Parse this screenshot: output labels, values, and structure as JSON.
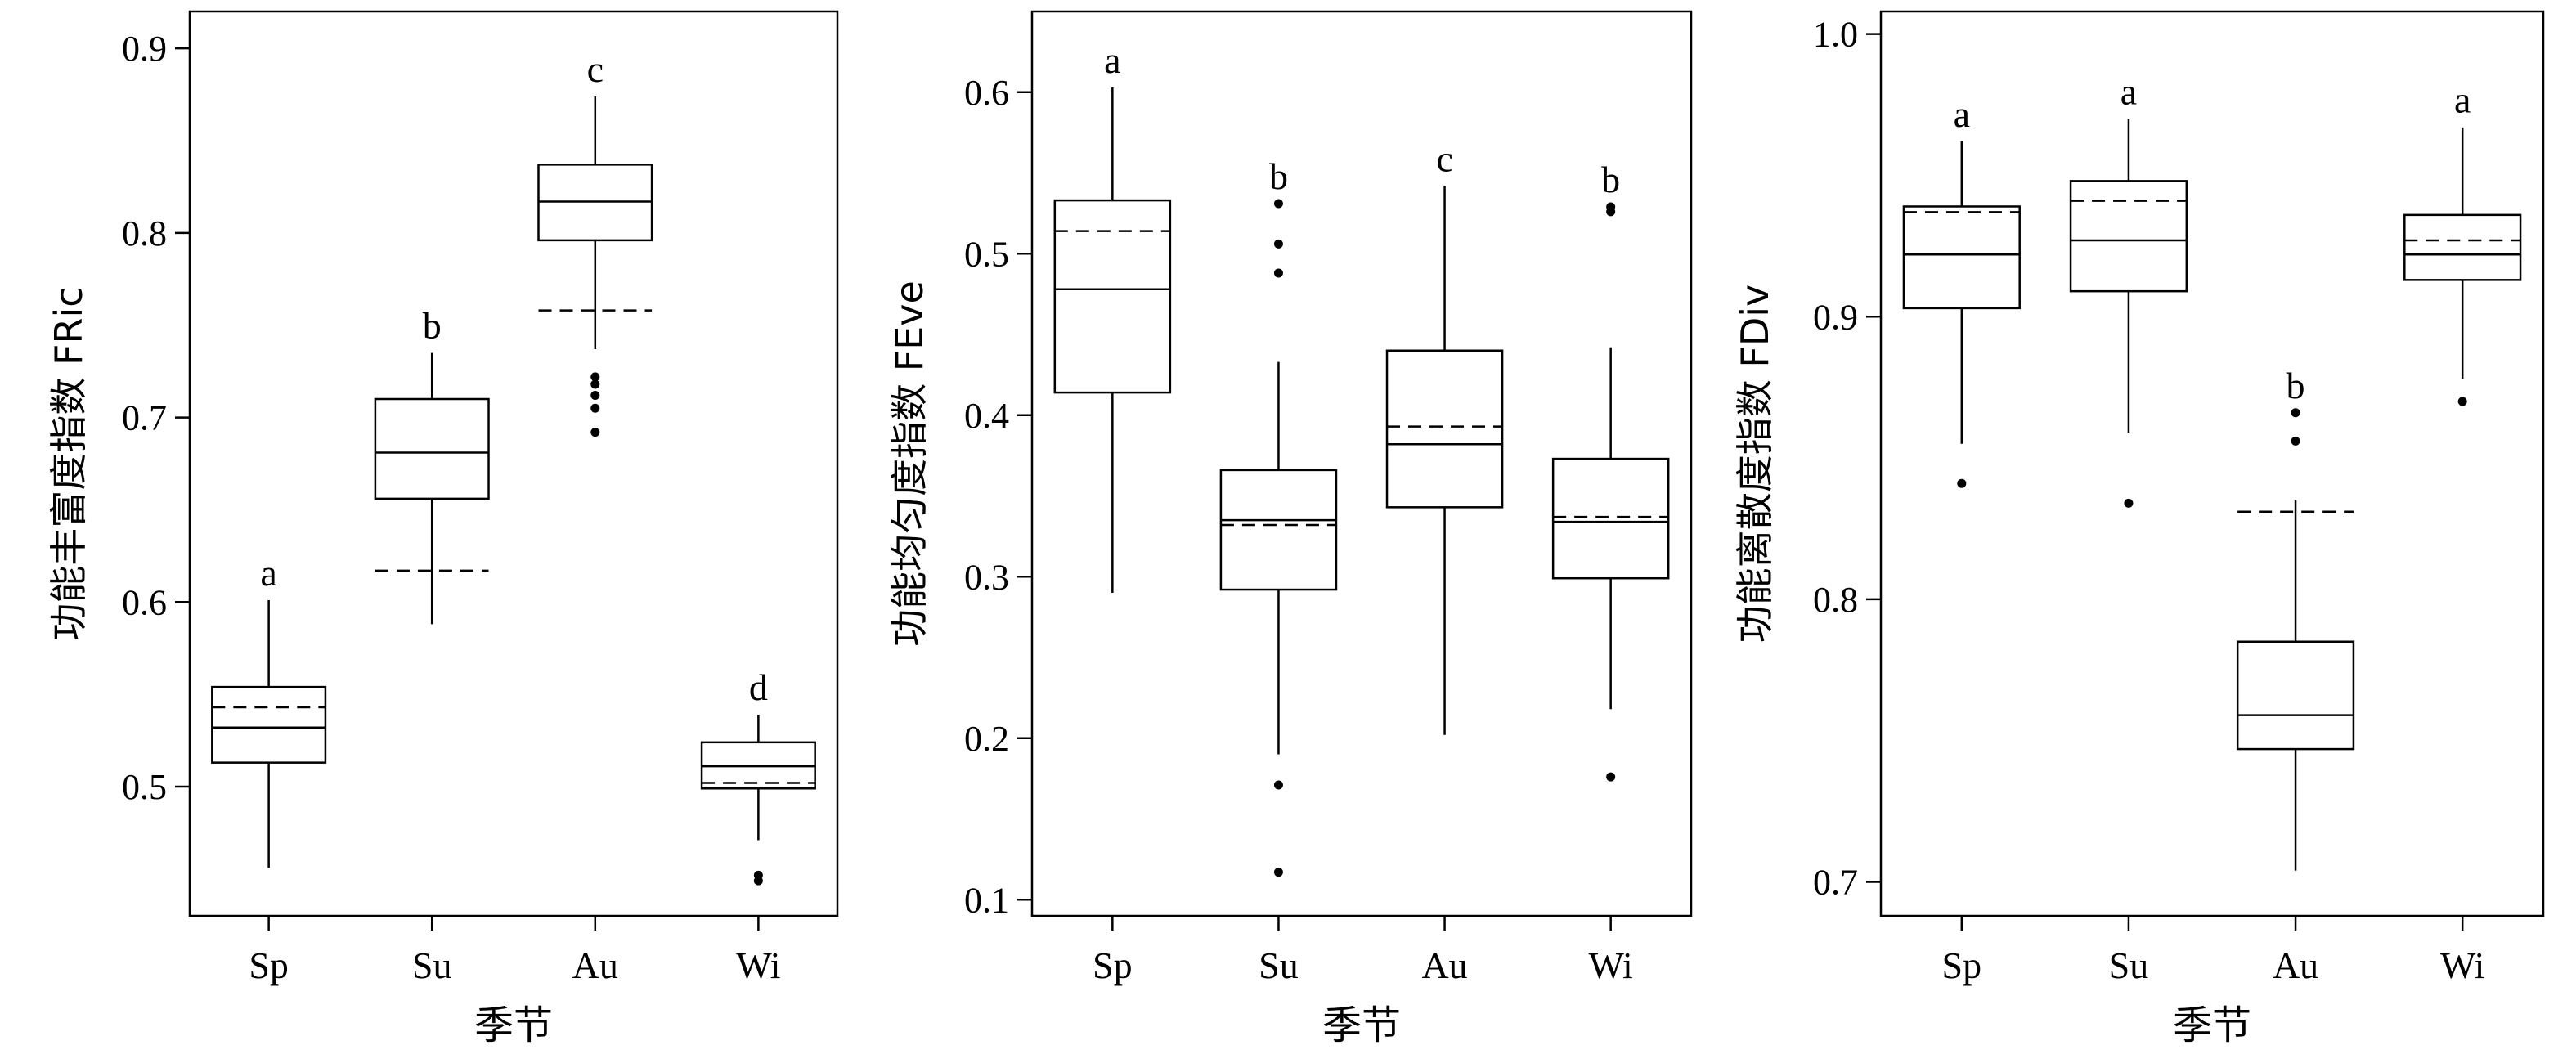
{
  "chart_data": [
    {
      "type": "box",
      "ylabel": "功能丰富度指数 FRic",
      "xlabel": "季节",
      "categories": [
        "Sp",
        "Su",
        "Au",
        "Wi"
      ],
      "ylim": [
        0.43,
        0.92
      ],
      "yticks": [
        0.5,
        0.6,
        0.7,
        0.8,
        0.9
      ],
      "ytick_labels": [
        "0.5",
        "0.6",
        "0.7",
        "0.8",
        "0.9"
      ],
      "boxes": [
        {
          "category": "Sp",
          "whisker_low": 0.456,
          "q1": 0.513,
          "median": 0.532,
          "q3": 0.554,
          "whisker_high": 0.601,
          "mean": 0.543,
          "outliers": [],
          "letter": "a"
        },
        {
          "category": "Su",
          "whisker_low": 0.588,
          "q1": 0.656,
          "median": 0.681,
          "q3": 0.71,
          "whisker_high": 0.735,
          "mean": 0.617,
          "outliers": [],
          "letter": "b"
        },
        {
          "category": "Au",
          "whisker_low": 0.737,
          "q1": 0.796,
          "median": 0.817,
          "q3": 0.837,
          "whisker_high": 0.874,
          "mean": 0.758,
          "outliers": [
            0.722,
            0.718,
            0.712,
            0.705,
            0.692
          ],
          "letter": "c"
        },
        {
          "category": "Wi",
          "whisker_low": 0.471,
          "q1": 0.499,
          "median": 0.511,
          "q3": 0.524,
          "whisker_high": 0.539,
          "mean": 0.502,
          "outliers": [
            0.452,
            0.449
          ],
          "letter": "d"
        }
      ]
    },
    {
      "type": "box",
      "ylabel": "功能均匀度指数 FEve",
      "xlabel": "季节",
      "categories": [
        "Sp",
        "Su",
        "Au",
        "Wi"
      ],
      "ylim": [
        0.09,
        0.65
      ],
      "yticks": [
        0.1,
        0.2,
        0.3,
        0.4,
        0.5,
        0.6
      ],
      "ytick_labels": [
        "0.1",
        "0.2",
        "0.3",
        "0.4",
        "0.5",
        "0.6"
      ],
      "boxes": [
        {
          "category": "Sp",
          "whisker_low": 0.29,
          "q1": 0.414,
          "median": 0.478,
          "q3": 0.533,
          "whisker_high": 0.603,
          "mean": 0.514,
          "outliers": [],
          "letter": "a"
        },
        {
          "category": "Su",
          "whisker_low": 0.19,
          "q1": 0.292,
          "median": 0.335,
          "q3": 0.366,
          "whisker_high": 0.433,
          "mean": 0.332,
          "outliers": [
            0.531,
            0.506,
            0.488,
            0.171,
            0.117
          ],
          "letter": "b"
        },
        {
          "category": "Au",
          "whisker_low": 0.202,
          "q1": 0.343,
          "median": 0.382,
          "q3": 0.44,
          "whisker_high": 0.542,
          "mean": 0.393,
          "outliers": [],
          "letter": "c"
        },
        {
          "category": "Wi",
          "whisker_low": 0.218,
          "q1": 0.299,
          "median": 0.334,
          "q3": 0.373,
          "whisker_high": 0.442,
          "mean": 0.337,
          "outliers": [
            0.529,
            0.526,
            0.176
          ],
          "letter": "b"
        }
      ]
    },
    {
      "type": "box",
      "ylabel": "功能离散度指数 FDiv",
      "xlabel": "季节",
      "categories": [
        "Sp",
        "Su",
        "Au",
        "Wi"
      ],
      "ylim": [
        0.688,
        1.008
      ],
      "yticks": [
        0.7,
        0.8,
        0.9,
        1.0
      ],
      "ytick_labels": [
        "0.7",
        "0.8",
        "0.9",
        "1.0"
      ],
      "boxes": [
        {
          "category": "Sp",
          "whisker_low": 0.855,
          "q1": 0.903,
          "median": 0.922,
          "q3": 0.939,
          "whisker_high": 0.962,
          "mean": 0.937,
          "outliers": [
            0.841
          ],
          "letter": "a"
        },
        {
          "category": "Su",
          "whisker_low": 0.859,
          "q1": 0.909,
          "median": 0.927,
          "q3": 0.948,
          "whisker_high": 0.97,
          "mean": 0.941,
          "outliers": [
            0.834
          ],
          "letter": "a"
        },
        {
          "category": "Au",
          "whisker_low": 0.704,
          "q1": 0.747,
          "median": 0.759,
          "q3": 0.785,
          "whisker_high": 0.835,
          "mean": 0.831,
          "outliers": [
            0.866,
            0.856
          ],
          "letter": "b"
        },
        {
          "category": "Wi",
          "whisker_low": 0.878,
          "q1": 0.913,
          "median": 0.922,
          "q3": 0.936,
          "whisker_high": 0.967,
          "mean": 0.927,
          "outliers": [
            0.87
          ],
          "letter": "a"
        }
      ]
    }
  ]
}
